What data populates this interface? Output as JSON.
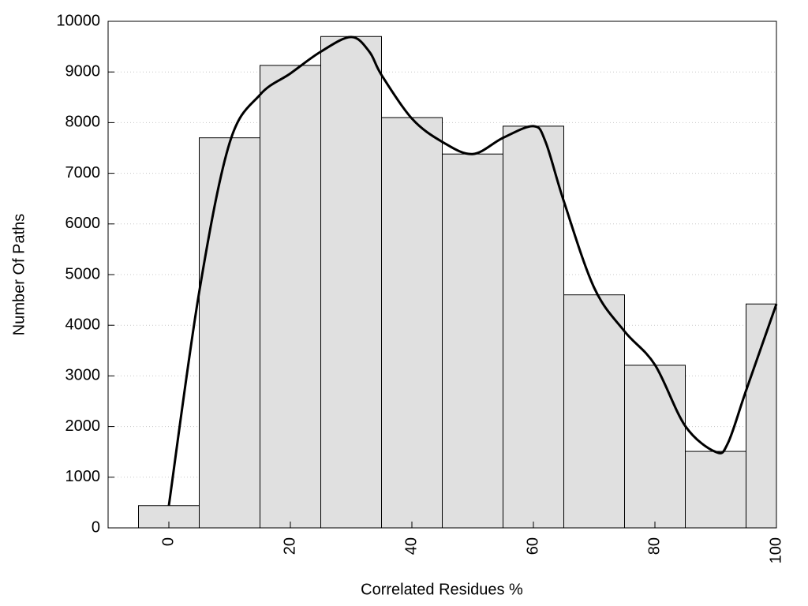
{
  "chart_data": {
    "type": "histogram",
    "xlabel": "Correlated Residues %",
    "ylabel": "Number Of Paths",
    "bins": [
      -5,
      5,
      15,
      25,
      35,
      45,
      55,
      65,
      75,
      85,
      95,
      100
    ],
    "values": [
      440,
      7700,
      9130,
      9700,
      8100,
      7380,
      7930,
      4600,
      3210,
      1510,
      4420
    ],
    "color": "#e0e0e0",
    "curve": {
      "x": [
        0,
        5,
        10,
        15,
        20,
        25,
        30,
        33,
        35,
        40,
        45,
        50,
        55,
        60,
        62,
        65,
        70,
        75,
        80,
        85,
        90,
        92,
        95,
        100
      ],
      "values": [
        440,
        4660,
        7600,
        8550,
        8970,
        9400,
        9690,
        9400,
        8940,
        8080,
        7620,
        7380,
        7700,
        7930,
        7620,
        6450,
        4740,
        3880,
        3220,
        2010,
        1500,
        1670,
        2710,
        4420
      ],
      "color": "#000000"
    },
    "xlim": [
      -10,
      100
    ],
    "ylim": [
      0,
      10000
    ],
    "xticks": [
      0,
      20,
      40,
      60,
      80,
      100
    ],
    "yticks": [
      0,
      1000,
      2000,
      3000,
      4000,
      5000,
      6000,
      7000,
      8000,
      9000,
      10000
    ],
    "grid": true
  }
}
